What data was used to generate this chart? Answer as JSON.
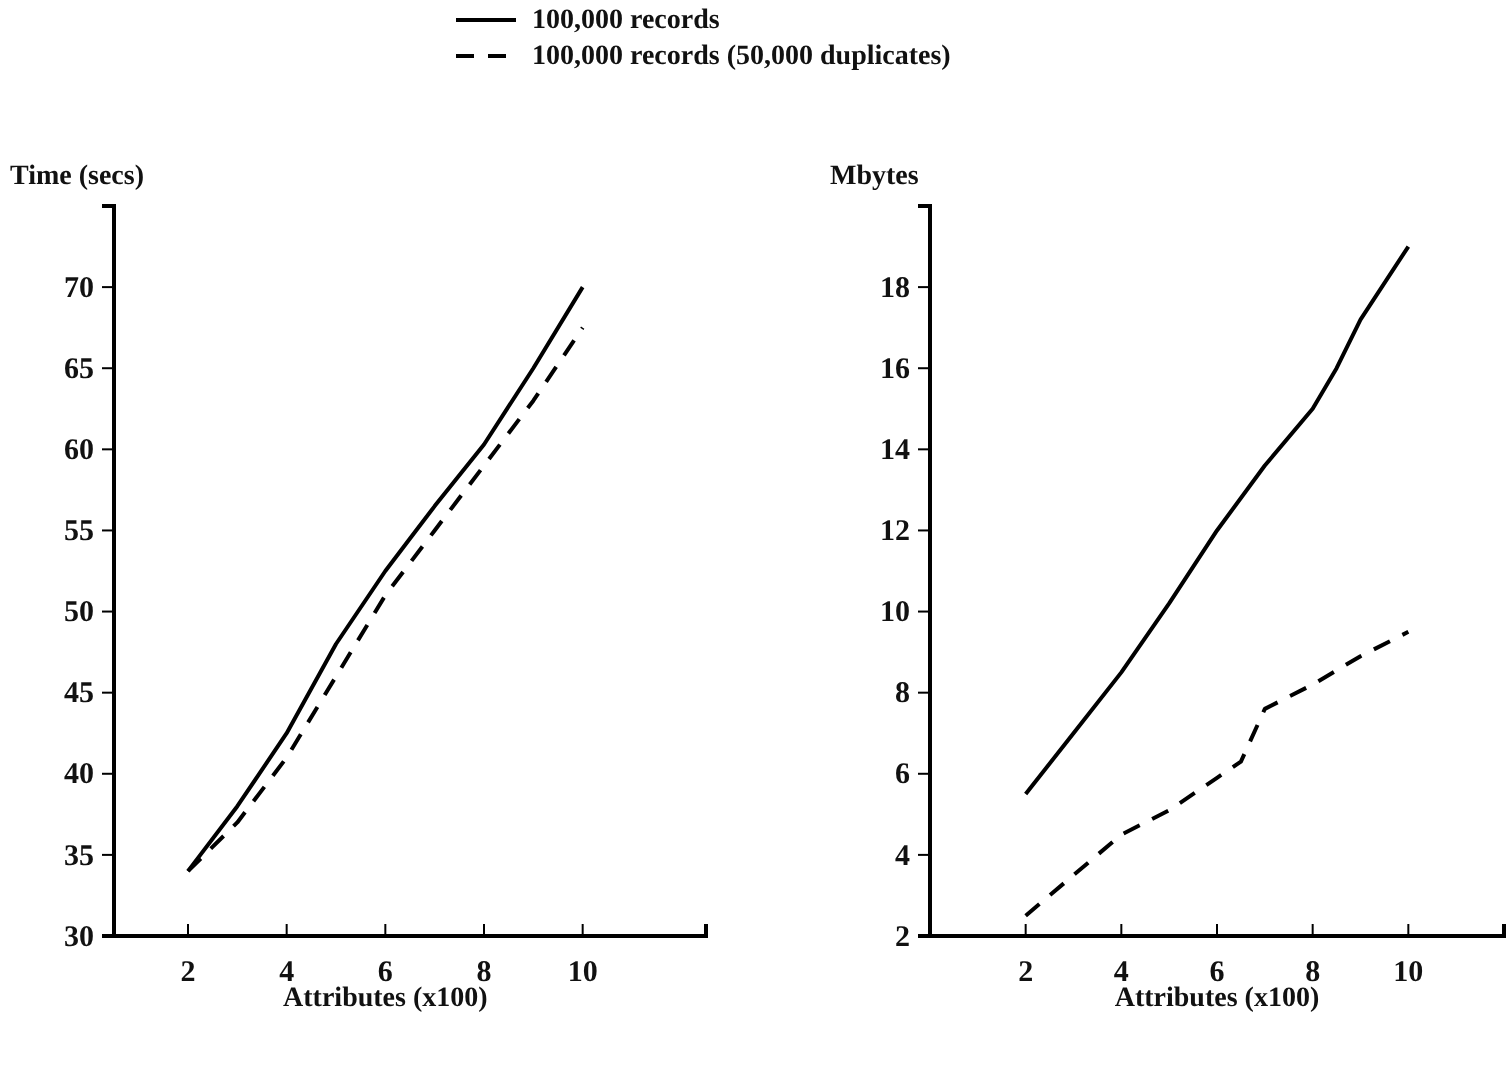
{
  "chart_data": [
    {
      "type": "line",
      "ylabel": "Time (secs)",
      "xlabel": "Attributes (x100)",
      "xlim": [
        0.5,
        12.5
      ],
      "xticks": [
        2,
        4,
        6,
        8,
        10
      ],
      "ylim": [
        30,
        75
      ],
      "yticks": [
        30,
        35,
        40,
        45,
        50,
        55,
        60,
        65,
        70
      ],
      "legend": "top",
      "grid": false,
      "series": [
        {
          "name": "100,000 records",
          "color": "#000000",
          "line_style": "solid",
          "x": [
            2,
            3,
            4,
            5,
            6,
            6.5,
            7,
            8,
            9,
            10
          ],
          "values": [
            34,
            38,
            42.5,
            48,
            52.5,
            54.5,
            56.5,
            60.3,
            65,
            70
          ]
        },
        {
          "name": "100,000 records (50,000 duplicates)",
          "color": "#000000",
          "line_style": "dashed",
          "x": [
            2,
            3,
            4,
            5,
            6,
            7,
            8,
            9,
            10
          ],
          "values": [
            34,
            37,
            41,
            46,
            51,
            55,
            59,
            63,
            67.5
          ]
        }
      ]
    },
    {
      "type": "line",
      "ylabel": "Mbytes",
      "xlabel": "Attributes (x100)",
      "xlim": [
        0,
        12
      ],
      "xticks": [
        2,
        4,
        6,
        8,
        10
      ],
      "ylim": [
        2,
        20
      ],
      "yticks": [
        2,
        4,
        6,
        8,
        10,
        12,
        14,
        16,
        18
      ],
      "legend": false,
      "grid": false,
      "series": [
        {
          "color": "#000000",
          "line_style": "solid",
          "x": [
            2,
            3,
            4,
            5,
            6,
            7,
            8,
            8.5,
            9,
            10
          ],
          "values": [
            5.5,
            7,
            8.5,
            10.2,
            12,
            13.6,
            15,
            16,
            17.2,
            19
          ]
        },
        {
          "color": "#000000",
          "line_style": "dashed",
          "x": [
            2,
            3,
            4,
            5,
            6,
            6.5,
            7,
            8,
            9,
            10
          ],
          "values": [
            2.5,
            3.5,
            4.5,
            5.1,
            5.9,
            6.3,
            7.6,
            8.2,
            8.9,
            9.5
          ]
        }
      ]
    }
  ]
}
